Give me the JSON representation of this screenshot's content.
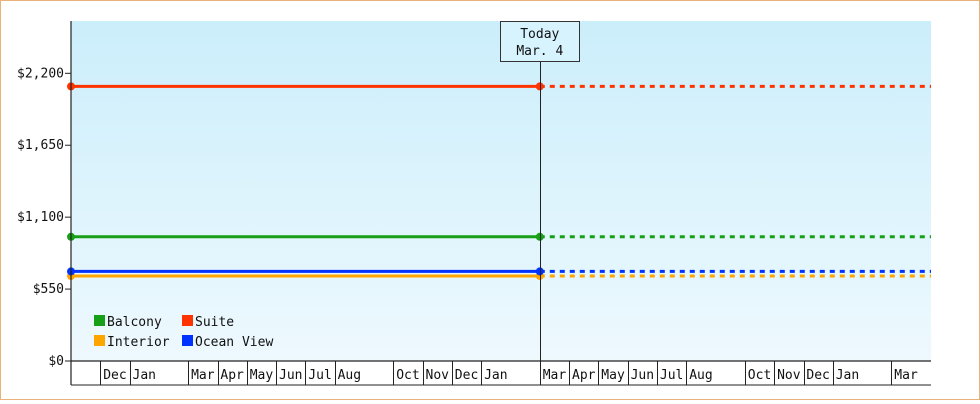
{
  "chart_data": {
    "type": "line",
    "y_axis": {
      "range": [
        0,
        2600
      ],
      "ticks": [
        0,
        550,
        1100,
        1650,
        2200
      ],
      "tick_labels": [
        "$0",
        "$550",
        "$1,100",
        "$1,650",
        "$2,200"
      ]
    },
    "grid": false,
    "background": {
      "top": "#cbeefb",
      "bottom": "#eef9fe"
    },
    "today": {
      "title": "Today",
      "date": "Mar. 4"
    },
    "x_months": [
      "",
      "Dec",
      "Jan",
      "",
      "Mar",
      "Apr",
      "May",
      "Jun",
      "Jul",
      "Aug",
      "",
      "Oct",
      "Nov",
      "Dec",
      "Jan",
      "",
      "Mar",
      "Apr",
      "May",
      "Jun",
      "Jul",
      "Aug",
      "",
      "Oct",
      "Nov",
      "Dec",
      "Jan",
      "",
      "Mar"
    ],
    "today_index": 16,
    "series": [
      {
        "name": "Balcony",
        "color": "#17a017",
        "value": 950
      },
      {
        "name": "Suite",
        "color": "#ff3300",
        "value": 2100
      },
      {
        "name": "Interior",
        "color": "#ffa500",
        "value": 650
      },
      {
        "name": "Ocean View",
        "color": "#0033ff",
        "value": 685
      }
    ],
    "legend": {
      "position": "bottom-left",
      "order": [
        "Balcony",
        "Suite",
        "Interior",
        "Ocean View"
      ]
    }
  }
}
